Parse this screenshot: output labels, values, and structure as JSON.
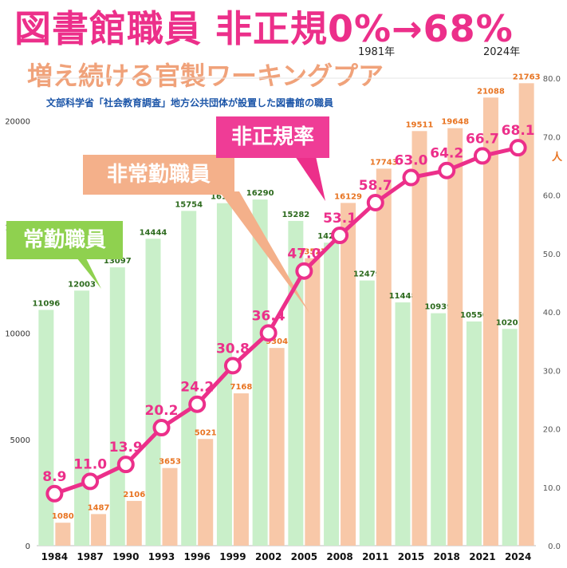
{
  "title": {
    "main": "図書館職員 非正規0%→68%",
    "year_start": "1981年",
    "year_end": "2024年"
  },
  "subtitle": "増え続ける官製ワーキングプア",
  "source": "文部科学省「社会教育調査」地方公共団体が設置した図書館の職員",
  "callouts": {
    "regular": "常勤職員",
    "nonregular": "非常勤職員",
    "rate": "非正規率"
  },
  "unit_label": "人",
  "colors": {
    "regular_bar": "#c9efc9",
    "nonregular_bar": "#f8c8a8",
    "rate_line": "#ec2f8a",
    "regular_label": "#2e6b1f",
    "nonregular_label": "#e87422",
    "title": "#ec2f8a",
    "subtitle": "#f0a27a",
    "source": "#1b55a8"
  },
  "chart_data": {
    "type": "bar",
    "categories": [
      "1984",
      "1987",
      "1990",
      "1993",
      "1996",
      "1999",
      "2002",
      "2005",
      "2008",
      "2011",
      "2015",
      "2018",
      "2021",
      "2024"
    ],
    "series": [
      {
        "name": "常勤職員",
        "type": "bar",
        "axis": "left",
        "values": [
          11096,
          12003,
          13097,
          14444,
          15754,
          16118,
          16290,
          15282,
          14259,
          12479,
          11448,
          10939,
          10550,
          10201
        ]
      },
      {
        "name": "非常勤職員",
        "type": "bar",
        "axis": "left",
        "values": [
          1080,
          1487,
          2106,
          3653,
          5021,
          7168,
          9304,
          13527,
          16129,
          17743,
          19511,
          19648,
          21088,
          21763
        ]
      },
      {
        "name": "非正規率",
        "type": "line",
        "axis": "right",
        "values": [
          8.9,
          11.0,
          13.9,
          20.2,
          24.2,
          30.8,
          36.4,
          47.0,
          53.1,
          58.7,
          63.0,
          64.2,
          66.7,
          68.1
        ]
      }
    ],
    "ylim": [
      0,
      22000
    ],
    "yticks": [
      "0",
      "5000",
      "10000",
      "15000",
      "20000"
    ],
    "y2lim": [
      0,
      80
    ],
    "y2ticks": [
      "0.0",
      "10.0",
      "20.0",
      "30.0",
      "40.0",
      "50.0",
      "60.0",
      "70.0",
      "80.0"
    ],
    "grid": false,
    "legend": "none"
  }
}
